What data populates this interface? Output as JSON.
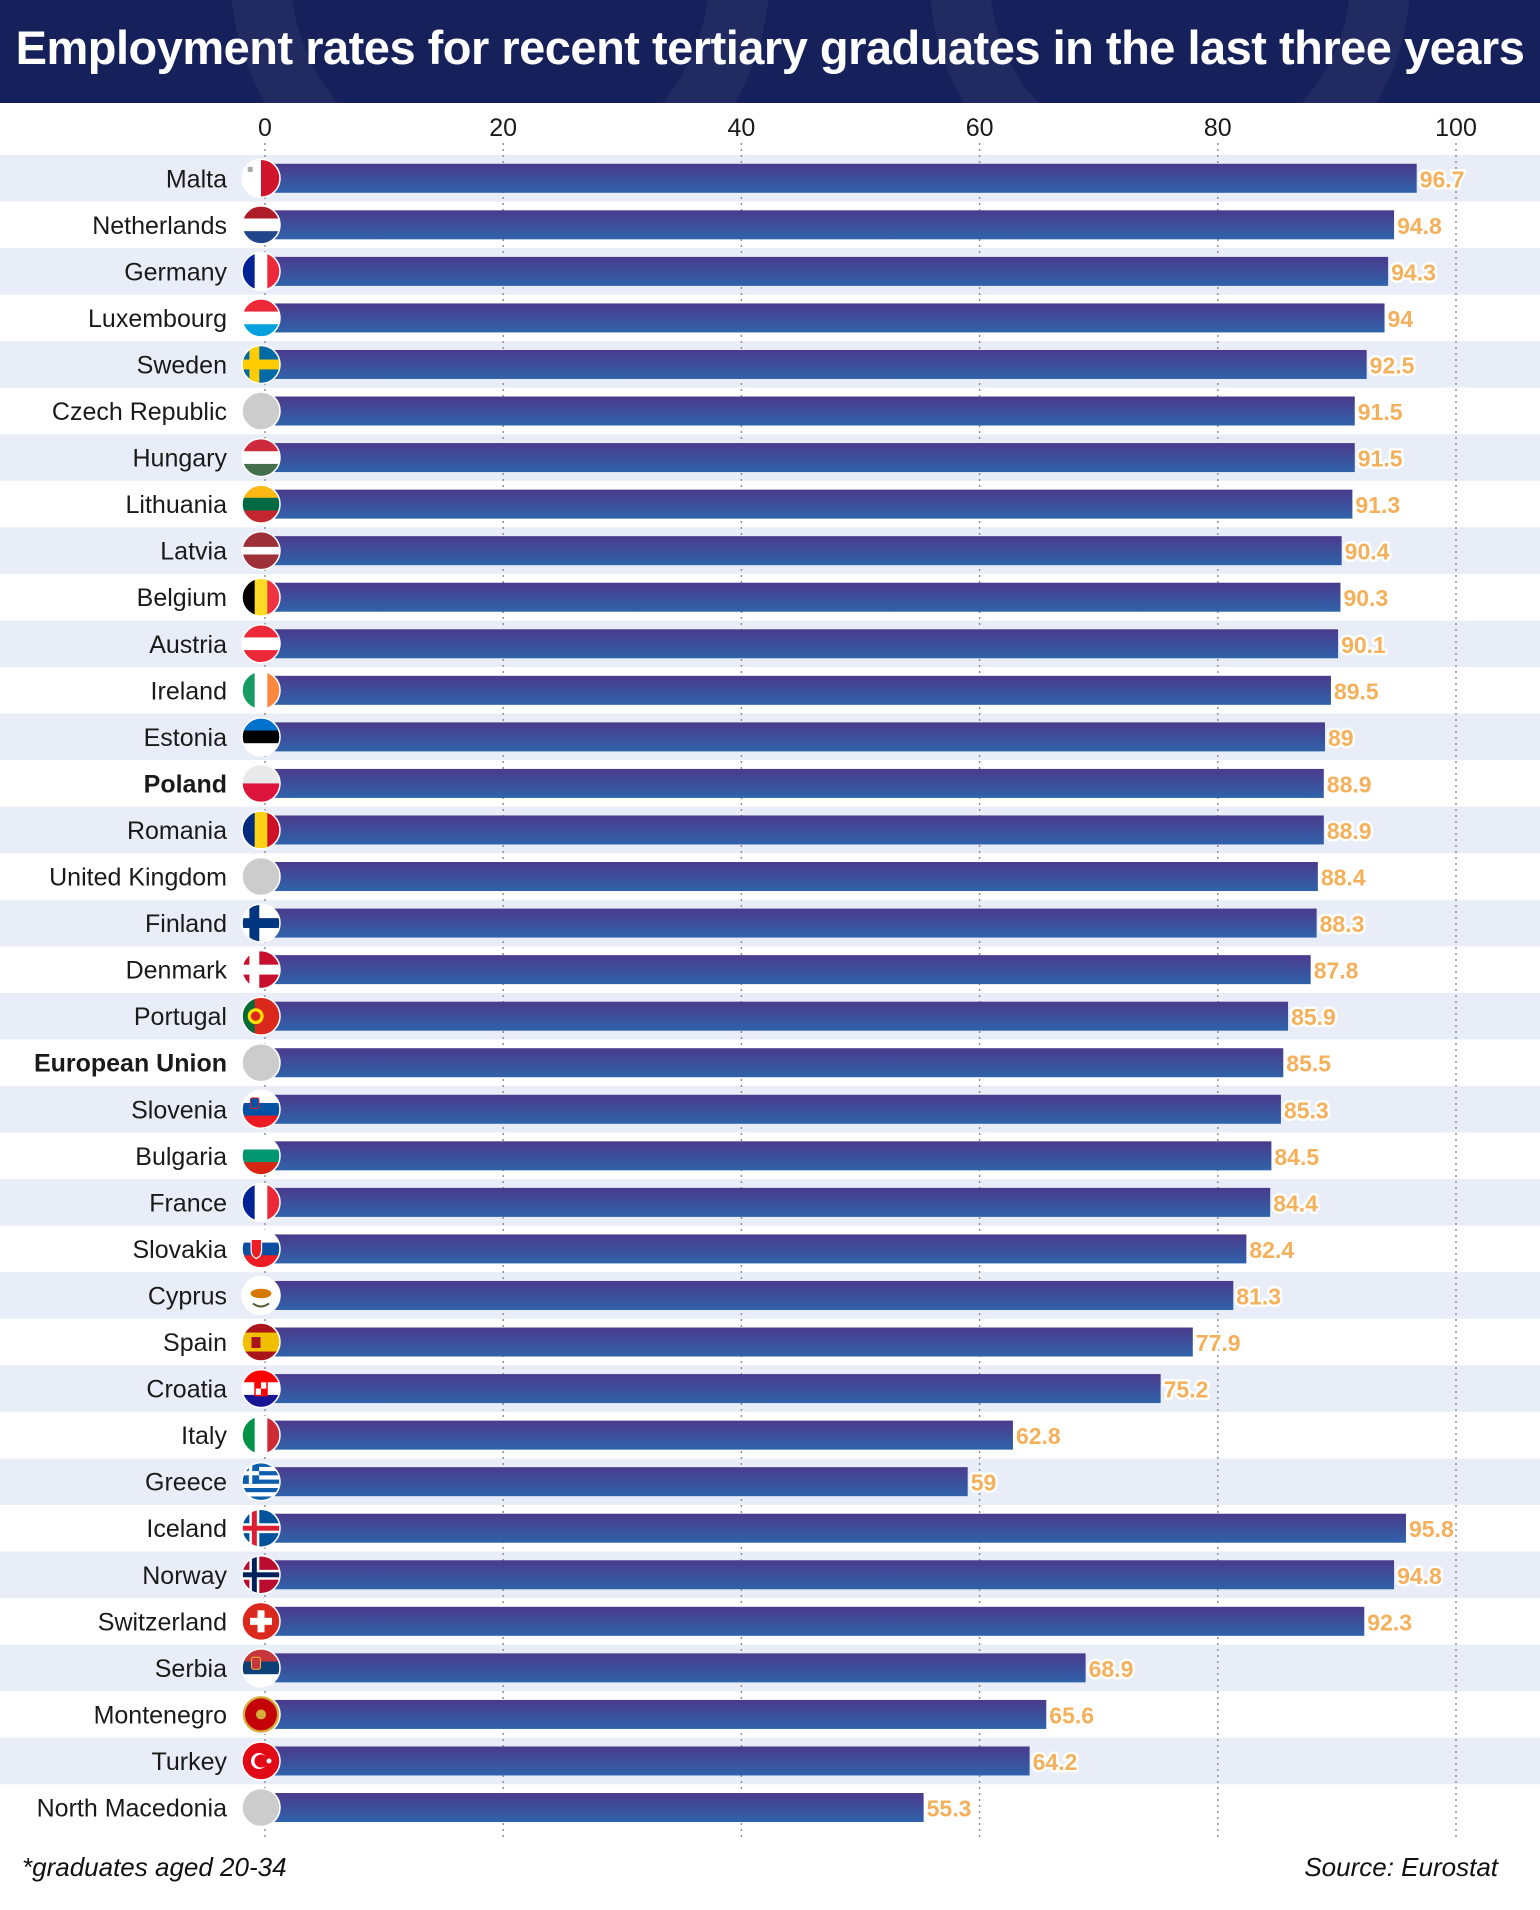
{
  "header": {
    "title": "Employment rates for recent tertiary graduates in the last three years"
  },
  "footer": {
    "note": "*graduates aged 20-34",
    "source": "Source: Eurostat"
  },
  "colors": {
    "header_bg": "#16205a",
    "bar_top": "#4b3a8c",
    "bar_bottom": "#2f63aa",
    "value_label": "#f4b05a",
    "highlight_poland": "#3d6fc4",
    "highlight_eu": "#d2404a",
    "stripe": "#e9edf7"
  },
  "chart_data": {
    "type": "bar",
    "orientation": "horizontal",
    "title": "Employment rates for recent tertiary graduates in the last three years",
    "xlim": [
      0,
      100
    ],
    "xticks": [
      0,
      20,
      40,
      60,
      80,
      100
    ],
    "grid": "vertical dotted",
    "categories": [
      "Malta",
      "Netherlands",
      "Germany",
      "Luxembourg",
      "Sweden",
      "Czech Republic",
      "Hungary",
      "Lithuania",
      "Latvia",
      "Belgium",
      "Austria",
      "Ireland",
      "Estonia",
      "Poland",
      "Romania",
      "United Kingdom",
      "Finland",
      "Denmark",
      "Portugal",
      "European Union",
      "Slovenia",
      "Bulgaria",
      "France",
      "Slovakia",
      "Cyprus",
      "Spain",
      "Croatia",
      "Italy",
      "Greece",
      "Iceland",
      "Norway",
      "Switzerland",
      "Serbia",
      "Montenegro",
      "Turkey",
      "North Macedonia"
    ],
    "values": [
      96.7,
      94.8,
      94.3,
      94,
      92.5,
      91.5,
      91.5,
      91.3,
      90.4,
      90.3,
      90.1,
      89.5,
      89,
      88.9,
      88.9,
      88.4,
      88.3,
      87.8,
      85.9,
      85.5,
      85.3,
      84.5,
      84.4,
      82.4,
      81.3,
      77.9,
      75.2,
      62.8,
      59,
      95.8,
      94.8,
      92.3,
      68.9,
      65.6,
      64.2,
      55.3
    ],
    "value_labels": [
      "96.7",
      "94.8",
      "94.3",
      "94",
      "92.5",
      "91.5",
      "91.5",
      "91.3",
      "90.4",
      "90.3",
      "90.1",
      "89.5",
      "89",
      "88.9",
      "88.9",
      "88.4",
      "88.3",
      "87.8",
      "85.9",
      "85.5",
      "85.3",
      "84.5",
      "84.4",
      "82.4",
      "81.3",
      "77.9",
      "75.2",
      "62.8",
      "59",
      "95.8",
      "94.8",
      "92.3",
      "68.9",
      "65.6",
      "64.2",
      "55.3"
    ],
    "highlight": {
      "Poland": "#3d6fc4",
      "European Union": "#d2404a"
    },
    "flag_icons": [
      "malta-flag-icon",
      "netherlands-flag-icon",
      "germany-flag-icon",
      "luxembourg-flag-icon",
      "sweden-flag-icon",
      "czech-republic-flag-icon",
      "hungary-flag-icon",
      "lithuania-flag-icon",
      "latvia-flag-icon",
      "belgium-flag-icon",
      "austria-flag-icon",
      "ireland-flag-icon",
      "estonia-flag-icon",
      "poland-flag-icon",
      "romania-flag-icon",
      "united-kingdom-flag-icon",
      "finland-flag-icon",
      "denmark-flag-icon",
      "portugal-flag-icon",
      "european-union-flag-icon",
      "slovenia-flag-icon",
      "bulgaria-flag-icon",
      "france-flag-icon",
      "slovakia-flag-icon",
      "cyprus-flag-icon",
      "spain-flag-icon",
      "croatia-flag-icon",
      "italy-flag-icon",
      "greece-flag-icon",
      "iceland-flag-icon",
      "norway-flag-icon",
      "switzerland-flag-icon",
      "serbia-flag-icon",
      "montenegro-flag-icon",
      "turkey-flag-icon",
      "north-macedonia-flag-icon"
    ]
  }
}
